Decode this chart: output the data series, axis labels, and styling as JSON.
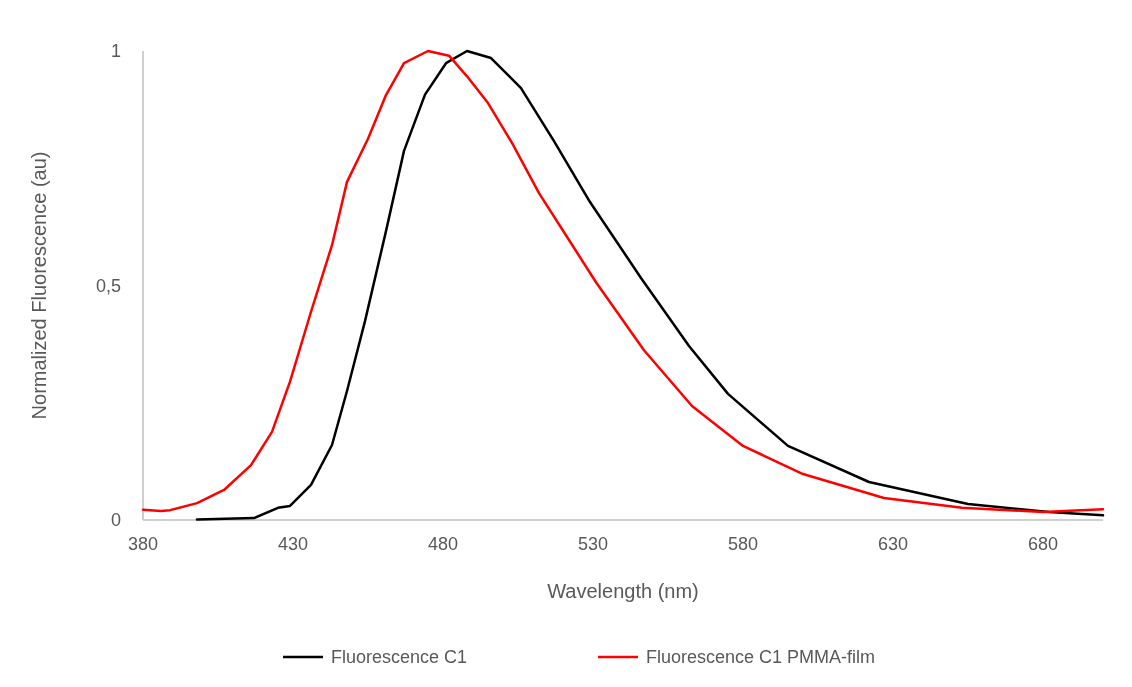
{
  "chart_data": {
    "type": "line",
    "xlabel": "Wavelength (nm)",
    "ylabel": "Normalized Fluorescence (au)",
    "xlim": [
      380,
      700
    ],
    "ylim": [
      0,
      1
    ],
    "xticks": [
      380,
      430,
      480,
      530,
      580,
      630,
      680
    ],
    "yticks": [
      0,
      {
        "value": 0.5,
        "label": "0,5"
      },
      1
    ],
    "grid": false,
    "legend": "bottom",
    "marker": "none",
    "line_style": "solid",
    "series": [
      {
        "name": "Fluorescence C1",
        "color": "#000000",
        "x": [
          398,
          417,
          425,
          429,
          436,
          443,
          448,
          454,
          461,
          467,
          474,
          481,
          488,
          496,
          506,
          517,
          529,
          546,
          562,
          575,
          595,
          622,
          655,
          682,
          700
        ],
        "values": [
          0.001,
          0.004,
          0.026,
          0.03,
          0.075,
          0.16,
          0.275,
          0.424,
          0.616,
          0.787,
          0.907,
          0.974,
          1.0,
          0.985,
          0.921,
          0.808,
          0.678,
          0.516,
          0.371,
          0.269,
          0.158,
          0.081,
          0.034,
          0.017,
          0.01
        ]
      },
      {
        "name": "Fluorescence C1 PMMA-film",
        "color": "#ff0000",
        "x": [
          380,
          386,
          389,
          398,
          407,
          416,
          423,
          429,
          436,
          443,
          448,
          455,
          461,
          467,
          475,
          482,
          488,
          495,
          503,
          512,
          522,
          531,
          547,
          563,
          580,
          600,
          627,
          653,
          680,
          700
        ],
        "values": [
          0.022,
          0.019,
          0.021,
          0.036,
          0.064,
          0.117,
          0.188,
          0.295,
          0.444,
          0.586,
          0.721,
          0.813,
          0.906,
          0.974,
          1.0,
          0.99,
          0.946,
          0.889,
          0.804,
          0.697,
          0.597,
          0.507,
          0.362,
          0.243,
          0.158,
          0.098,
          0.047,
          0.026,
          0.017,
          0.023
        ]
      }
    ]
  }
}
